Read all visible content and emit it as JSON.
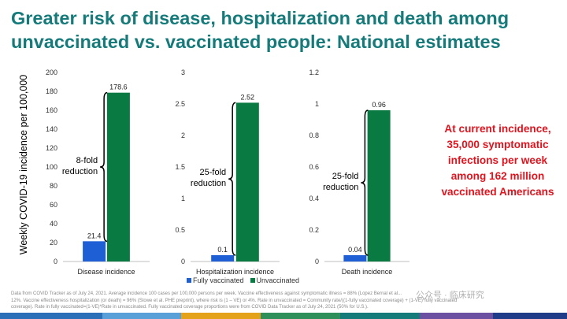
{
  "title_line1": "Greater risk of disease, hospitalization and death among",
  "title_line2": "unvaccinated vs. vaccinated people: National estimates",
  "y_axis_label": "Weekly COVID-19 incidence per 100,000",
  "note": "At current incidence, 35,000 symptomatic infections per week among 162 million vaccinated Americans",
  "legend": {
    "vaccinated": "Fully vaccinated",
    "unvaccinated": "Unvaccinated"
  },
  "colors": {
    "vaccinated": "#1f5fd6",
    "unvaccinated": "#0a7a43",
    "title": "#157a7a",
    "note": "#e0141e"
  },
  "footnote": [
    "Data from COVID Tracker as of July 24, 2021. Average incidence 100 cases per 100,000 persons per week. Vaccine effectiveness against symptomatic illness = 88% (Lopez Bernal et al...",
    "12%. Vaccine effectiveness hospitalization (or death) = 96% (Stowe et al. PHE preprint), where risk is (1 – VE) or 4%. Rate in unvaccinated = Community rate/((1-fully vaccinated coverage) + (1-VE)*fully vaccinated",
    "coverage). Rate in fully vaccinated=(1-VE)*Rate in unvaccinated. Fully vaccinated coverage proportions were from COVID Data Tracker as of July 24, 2021 (50% for U.S.)."
  ],
  "watermark": "公众号 · 临床研究",
  "chart_data": [
    {
      "type": "bar",
      "categories": [
        "Disease incidence"
      ],
      "series": [
        {
          "name": "Fully vaccinated",
          "values": [
            21.4
          ]
        },
        {
          "name": "Unvaccinated",
          "values": [
            178.6
          ]
        }
      ],
      "ylim": [
        0,
        200
      ],
      "yticks": [
        "0",
        "20",
        "40",
        "60",
        "80",
        "100",
        "120",
        "140",
        "160",
        "180",
        "200"
      ],
      "value_labels": [
        "21.4",
        "178.6"
      ],
      "annotation": [
        "8-fold",
        "reduction"
      ]
    },
    {
      "type": "bar",
      "categories": [
        "Hospitalization incidence"
      ],
      "series": [
        {
          "name": "Fully vaccinated",
          "values": [
            0.1
          ]
        },
        {
          "name": "Unvaccinated",
          "values": [
            2.52
          ]
        }
      ],
      "ylim": [
        0,
        3
      ],
      "yticks": [
        "0",
        "0.5",
        "1",
        "1.5",
        "2",
        "2.5",
        "3"
      ],
      "value_labels": [
        "0.1",
        "2.52"
      ],
      "annotation": [
        "25-fold",
        "reduction"
      ]
    },
    {
      "type": "bar",
      "categories": [
        "Death incidence"
      ],
      "series": [
        {
          "name": "Fully vaccinated",
          "values": [
            0.04
          ]
        },
        {
          "name": "Unvaccinated",
          "values": [
            0.96
          ]
        }
      ],
      "ylim": [
        0,
        1.2
      ],
      "yticks": [
        "0",
        "0.2",
        "0.4",
        "0.6",
        "0.8",
        "1",
        "1.2"
      ],
      "value_labels": [
        "0.04",
        "0.96"
      ],
      "annotation": [
        "25-fold",
        "reduction"
      ]
    }
  ]
}
